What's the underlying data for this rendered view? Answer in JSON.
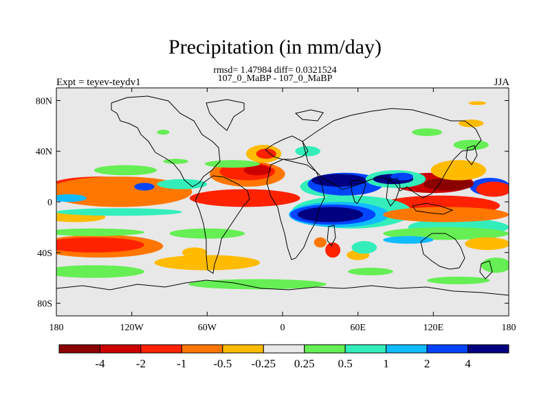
{
  "chart_data": {
    "type": "heatmap",
    "title": "Precipitation (in mm/day)",
    "subtitle_stats": "rmsd= 1.47984 diff= 0.0321524",
    "subtitle_periods": "107_0_MaBP - 107_0_MaBP",
    "left_label": "Expt = teyev-teydv1",
    "right_label": "JJA",
    "x_ticks": [
      "180",
      "120W",
      "60W",
      "0",
      "60E",
      "120E",
      "180"
    ],
    "x_tick_values": [
      -180,
      -120,
      -60,
      0,
      60,
      120,
      180
    ],
    "y_ticks": [
      "80N",
      "40N",
      "0",
      "40S",
      "80S"
    ],
    "y_tick_values": [
      80,
      40,
      0,
      -40,
      -80
    ],
    "xlim": [
      -180,
      180
    ],
    "ylim": [
      -90,
      90
    ],
    "colorbar": {
      "boundaries": [
        "-4",
        "-2",
        "-1",
        "-0.5",
        "-0.25",
        "0.25",
        "0.5",
        "1",
        "2",
        "4"
      ],
      "colors": [
        "#8b0000",
        "#cc0000",
        "#ff2200",
        "#ff7700",
        "#ffbb00",
        "#e8e8e8",
        "#66ee55",
        "#33eebb",
        "#11bbff",
        "#0044ff",
        "#000080"
      ]
    },
    "features": [
      {
        "class": 9,
        "x": 165,
        "y": 12,
        "rx": 16,
        "ry": 7
      },
      {
        "class": 9,
        "x": 163,
        "y": 10,
        "rx": 9,
        "ry": 4
      },
      {
        "class": 7,
        "x": 30,
        "y": -8,
        "rx": 22,
        "ry": 5
      },
      {
        "class": 1,
        "x": 120,
        "y": 15,
        "rx": 32,
        "ry": 8
      },
      {
        "class": 0,
        "x": 132,
        "y": 14,
        "rx": 20,
        "ry": 5
      },
      {
        "class": 2,
        "x": 168,
        "y": 10,
        "rx": 14,
        "ry": 6
      },
      {
        "class": 4,
        "x": 140,
        "y": 25,
        "rx": 22,
        "ry": 8
      },
      {
        "class": 2,
        "x": 125,
        "y": -3,
        "rx": 48,
        "ry": 8
      },
      {
        "class": 1,
        "x": -30,
        "y": 3,
        "rx": 33,
        "ry": 5
      },
      {
        "class": 2,
        "x": -30,
        "y": 3,
        "rx": 44,
        "ry": 7
      },
      {
        "class": 1,
        "x": -145,
        "y": 13,
        "rx": 32,
        "ry": 5
      },
      {
        "class": 2,
        "x": -145,
        "y": 13,
        "rx": 40,
        "ry": 7
      },
      {
        "class": 3,
        "x": -130,
        "y": 8,
        "rx": 58,
        "ry": 12
      },
      {
        "class": 8,
        "x": -170,
        "y": 3,
        "rx": 14,
        "ry": 3
      },
      {
        "class": 4,
        "x": -165,
        "y": -12,
        "rx": 24,
        "ry": 4
      },
      {
        "class": 3,
        "x": -145,
        "y": -35,
        "rx": 50,
        "ry": 9
      },
      {
        "class": 2,
        "x": -150,
        "y": -34,
        "rx": 40,
        "ry": 6
      },
      {
        "class": 4,
        "x": -60,
        "y": -48,
        "rx": 42,
        "ry": 6
      },
      {
        "class": 6,
        "x": -150,
        "y": -24,
        "rx": 40,
        "ry": 3
      },
      {
        "class": 6,
        "x": -150,
        "y": -55,
        "rx": 40,
        "ry": 5
      },
      {
        "class": 6,
        "x": -60,
        "y": -25,
        "rx": 30,
        "ry": 4
      },
      {
        "class": 7,
        "x": 40,
        "y": 12,
        "rx": 26,
        "ry": 8
      },
      {
        "class": 9,
        "x": 50,
        "y": 14,
        "rx": 30,
        "ry": 9
      },
      {
        "class": 10,
        "x": 45,
        "y": 17,
        "rx": 22,
        "ry": 5
      },
      {
        "class": 3,
        "x": -28,
        "y": 22,
        "rx": 30,
        "ry": 10
      },
      {
        "class": 2,
        "x": -28,
        "y": 24,
        "rx": 22,
        "ry": 7
      },
      {
        "class": 1,
        "x": -20,
        "y": 25,
        "rx": 11,
        "ry": 4
      },
      {
        "class": 4,
        "x": -15,
        "y": 38,
        "rx": 14,
        "ry": 7
      },
      {
        "class": 2,
        "x": -13,
        "y": 38,
        "rx": 8,
        "ry": 4
      },
      {
        "class": 7,
        "x": -80,
        "y": 14,
        "rx": 20,
        "ry": 4
      },
      {
        "class": 9,
        "x": -110,
        "y": 12,
        "rx": 8,
        "ry": 3
      },
      {
        "class": 6,
        "x": -125,
        "y": 25,
        "rx": 25,
        "ry": 4
      },
      {
        "class": 6,
        "x": -40,
        "y": 30,
        "rx": 22,
        "ry": 3
      },
      {
        "class": 7,
        "x": 90,
        "y": 18,
        "rx": 24,
        "ry": 7
      },
      {
        "class": 10,
        "x": 88,
        "y": 18,
        "rx": 16,
        "ry": 4
      },
      {
        "class": 9,
        "x": 95,
        "y": 20,
        "rx": 9,
        "ry": 3
      },
      {
        "class": 7,
        "x": 20,
        "y": 40,
        "rx": 10,
        "ry": 4
      },
      {
        "class": 7,
        "x": 55,
        "y": -8,
        "rx": 48,
        "ry": 13
      },
      {
        "class": 8,
        "x": 45,
        "y": -10,
        "rx": 40,
        "ry": 10
      },
      {
        "class": 9,
        "x": 40,
        "y": -10,
        "rx": 34,
        "ry": 8
      },
      {
        "class": 10,
        "x": 38,
        "y": -10,
        "rx": 26,
        "ry": 6
      },
      {
        "class": 7,
        "x": 140,
        "y": -20,
        "rx": 40,
        "ry": 7
      },
      {
        "class": 7,
        "x": -130,
        "y": -8,
        "rx": 50,
        "ry": 3
      },
      {
        "class": 6,
        "x": 130,
        "y": -25,
        "rx": 50,
        "ry": 5
      },
      {
        "class": 3,
        "x": 130,
        "y": -10,
        "rx": 50,
        "ry": 6
      },
      {
        "class": 8,
        "x": 100,
        "y": -30,
        "rx": 20,
        "ry": 3
      },
      {
        "class": 4,
        "x": 163,
        "y": -33,
        "rx": 18,
        "ry": 5
      },
      {
        "class": 6,
        "x": 170,
        "y": -50,
        "rx": 12,
        "ry": 6
      },
      {
        "class": 2,
        "x": 40,
        "y": -38,
        "rx": 6,
        "ry": 6
      },
      {
        "class": 3,
        "x": 30,
        "y": -32,
        "rx": 5,
        "ry": 4
      },
      {
        "class": 4,
        "x": 60,
        "y": -42,
        "rx": 9,
        "ry": 4
      },
      {
        "class": 7,
        "x": 65,
        "y": -36,
        "rx": 10,
        "ry": 5
      },
      {
        "class": 4,
        "x": -70,
        "y": -40,
        "rx": 10,
        "ry": 4
      },
      {
        "class": 6,
        "x": 70,
        "y": -55,
        "rx": 18,
        "ry": 3
      },
      {
        "class": 6,
        "x": -20,
        "y": -65,
        "rx": 55,
        "ry": 4
      },
      {
        "class": 6,
        "x": 140,
        "y": -62,
        "rx": 25,
        "ry": 3
      },
      {
        "class": 4,
        "x": 150,
        "y": 62,
        "rx": 10,
        "ry": 3
      },
      {
        "class": 4,
        "x": 155,
        "y": 78,
        "rx": 7,
        "ry": 1.5
      },
      {
        "class": 6,
        "x": -95,
        "y": 55,
        "rx": 5,
        "ry": 2
      },
      {
        "class": 6,
        "x": -85,
        "y": 32,
        "rx": 10,
        "ry": 2
      },
      {
        "class": 6,
        "x": 150,
        "y": 45,
        "rx": 14,
        "ry": 4
      },
      {
        "class": 6,
        "x": 115,
        "y": 55,
        "rx": 12,
        "ry": 3
      }
    ]
  }
}
